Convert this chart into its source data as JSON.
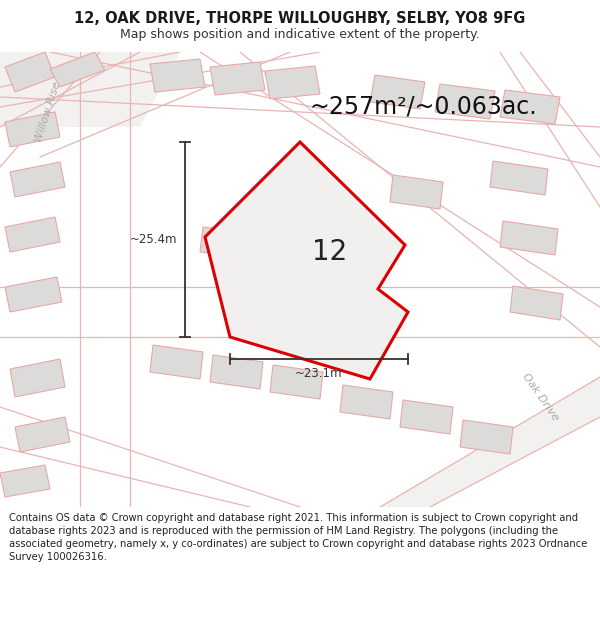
{
  "title_line1": "12, OAK DRIVE, THORPE WILLOUGHBY, SELBY, YO8 9FG",
  "title_line2": "Map shows position and indicative extent of the property.",
  "area_text": "~257m²/~0.063ac.",
  "house_number": "12",
  "dim_width": "~23.1m",
  "dim_height": "~25.4m",
  "footer_text": "Contains OS data © Crown copyright and database right 2021. This information is subject to Crown copyright and database rights 2023 and is reproduced with the permission of HM Land Registry. The polygons (including the associated geometry, namely x, y co-ordinates) are subject to Crown copyright and database rights 2023 Ordnance Survey 100026316.",
  "map_bg": "#f2f0ee",
  "building_fill": "#dddbd9",
  "building_edge": "#e8a8a8",
  "plot_fill": "#f2f0ee",
  "plot_edge": "#dd0000",
  "plot_lw": 2.2,
  "dim_color": "#333333",
  "footer_bg": "#ffffff",
  "road_line_color": "#e8b4b4",
  "road_fill": "#e8e4e0",
  "street_label_color": "#aaaaaa",
  "title_fontsize": 10.5,
  "subtitle_fontsize": 9,
  "area_fontsize": 17,
  "dim_fontsize": 8.5,
  "house_num_fontsize": 20,
  "footer_fontsize": 7.2
}
